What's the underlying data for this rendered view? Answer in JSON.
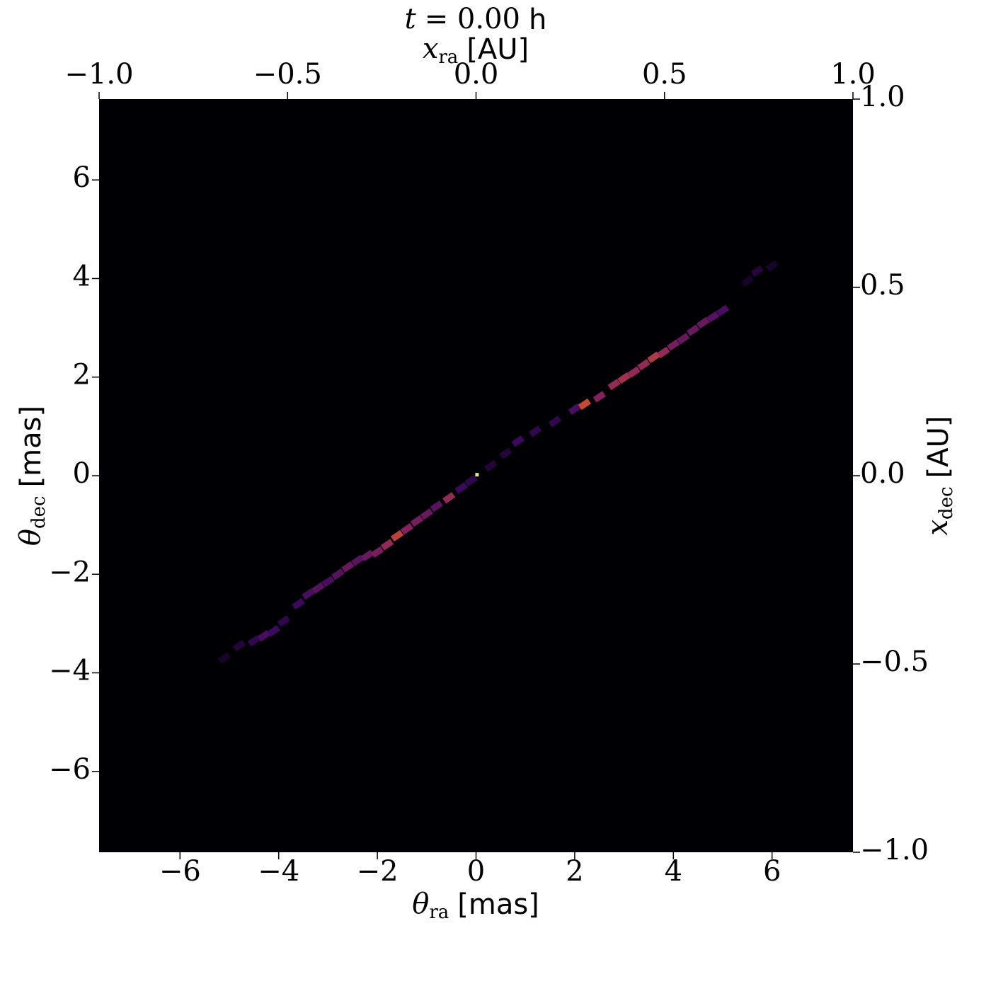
{
  "chart_data": {
    "type": "heatmap",
    "title": {
      "symbol": "t",
      "relation": "= 0.00",
      "unit": "h"
    },
    "x_label": {
      "symbol": "θ",
      "subscript": "ra",
      "unit": "[mas]"
    },
    "y_label": {
      "symbol": "θ",
      "subscript": "dec",
      "unit": "[mas]"
    },
    "x2_label": {
      "symbol": "x",
      "subscript": "ra",
      "unit": "[AU]"
    },
    "y2_label": {
      "symbol": "x",
      "subscript": "dec",
      "unit": "[AU]"
    },
    "xlim": [
      -7.64,
      7.64
    ],
    "ylim": [
      -7.64,
      7.64
    ],
    "x2lim": [
      -1,
      1
    ],
    "y2lim": [
      -1,
      1
    ],
    "xticks": [
      {
        "value": -6,
        "label": "−6"
      },
      {
        "value": -4,
        "label": "−4"
      },
      {
        "value": -2,
        "label": "−2"
      },
      0,
      2,
      4,
      6
    ],
    "yticks": [
      {
        "value": -6,
        "label": "−6"
      },
      {
        "value": -4,
        "label": "−4"
      },
      {
        "value": -2,
        "label": "−2"
      },
      0,
      2,
      4,
      6
    ],
    "x2ticks": [
      {
        "value": -1,
        "label": "−1.0"
      },
      {
        "value": -0.5,
        "label": "−0.5"
      },
      {
        "value": 0,
        "label": "0.0"
      },
      0.5,
      {
        "value": 1,
        "label": "1.0"
      }
    ],
    "y2ticks": [
      {
        "value": -1,
        "label": "−1.0"
      },
      {
        "value": -0.5,
        "label": "−0.5"
      },
      {
        "value": 0,
        "label": "0.0"
      },
      0.5,
      {
        "value": 1,
        "label": "1.0"
      }
    ],
    "colormap": [
      "#000004",
      "#420a68",
      "#932667",
      "#dd513a",
      "#fcffa4"
    ],
    "x": [
      -5.1,
      -4.8,
      -4.5,
      -4.3,
      -4.1,
      -3.9,
      -3.6,
      -3.4,
      -3.2,
      -3.0,
      -2.8,
      -2.6,
      -2.4,
      -2.2,
      -2.0,
      -1.8,
      -1.6,
      -1.4,
      -1.2,
      -1.0,
      -0.8,
      -0.55,
      -0.3,
      -0.1,
      0.02,
      0.3,
      0.6,
      0.85,
      1.2,
      1.6,
      2.0,
      2.2,
      2.5,
      2.8,
      3.0,
      3.2,
      3.4,
      3.6,
      3.8,
      4.0,
      4.2,
      4.4,
      4.6,
      4.8,
      5.0,
      5.5,
      5.7,
      6.0
    ],
    "y": [
      -3.7,
      -3.45,
      -3.35,
      -3.25,
      -3.15,
      -2.95,
      -2.6,
      -2.4,
      -2.28,
      -2.15,
      -2.0,
      -1.85,
      -1.72,
      -1.62,
      -1.55,
      -1.4,
      -1.22,
      -1.08,
      -0.92,
      -0.78,
      -0.62,
      -0.45,
      -0.25,
      -0.1,
      0.02,
      0.2,
      0.45,
      0.7,
      0.9,
      1.1,
      1.35,
      1.45,
      1.6,
      1.85,
      1.98,
      2.1,
      2.25,
      2.4,
      2.5,
      2.65,
      2.78,
      2.95,
      3.1,
      3.22,
      3.35,
      3.95,
      4.15,
      4.25
    ],
    "values": [
      0.1,
      0.15,
      0.2,
      0.3,
      0.25,
      0.2,
      0.25,
      0.3,
      0.35,
      0.3,
      0.35,
      0.4,
      0.35,
      0.4,
      0.45,
      0.55,
      0.7,
      0.5,
      0.45,
      0.4,
      0.35,
      0.55,
      0.25,
      0.2,
      1.0,
      0.15,
      0.15,
      0.25,
      0.2,
      0.2,
      0.3,
      0.75,
      0.5,
      0.55,
      0.6,
      0.55,
      0.55,
      0.65,
      0.55,
      0.45,
      0.4,
      0.4,
      0.4,
      0.35,
      0.3,
      0.1,
      0.15,
      0.1
    ]
  }
}
